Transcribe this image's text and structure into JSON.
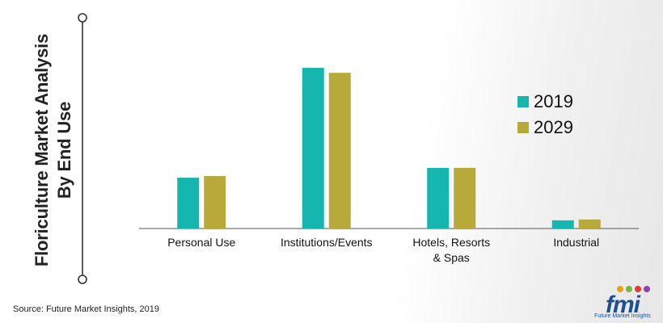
{
  "title": "Floriculture Market Analysis\nBy End Use",
  "title_lines": [
    "Floriculture Market Analysis",
    "By End Use"
  ],
  "source": "Source: Future Market Insights, 2019",
  "logo": {
    "text": "fmi",
    "subtext": "Future Market Insights"
  },
  "colors": {
    "series_2019": "#15b5b0",
    "series_2029": "#b7a93a",
    "axis": "#555555",
    "title": "#222222"
  },
  "chart_data": {
    "type": "bar",
    "title": "Floriculture Market Analysis By End Use",
    "categories": [
      {
        "label_lines": [
          "Personal Use"
        ]
      },
      {
        "label_lines": [
          "Institutions/Events"
        ]
      },
      {
        "label_lines": [
          "Hotels, Resorts",
          "& Spas"
        ]
      },
      {
        "label_lines": [
          "Industrial"
        ]
      }
    ],
    "series": [
      {
        "name": "2019",
        "color": "#15b5b0",
        "values": [
          31,
          98,
          37,
          5
        ]
      },
      {
        "name": "2029",
        "color": "#b7a93a",
        "values": [
          32,
          95,
          37,
          5.5
        ]
      }
    ],
    "ylim": [
      0,
      100
    ],
    "y_axis_shown": false,
    "grid": false,
    "legend_position": "right",
    "xlabel": "",
    "ylabel": ""
  }
}
